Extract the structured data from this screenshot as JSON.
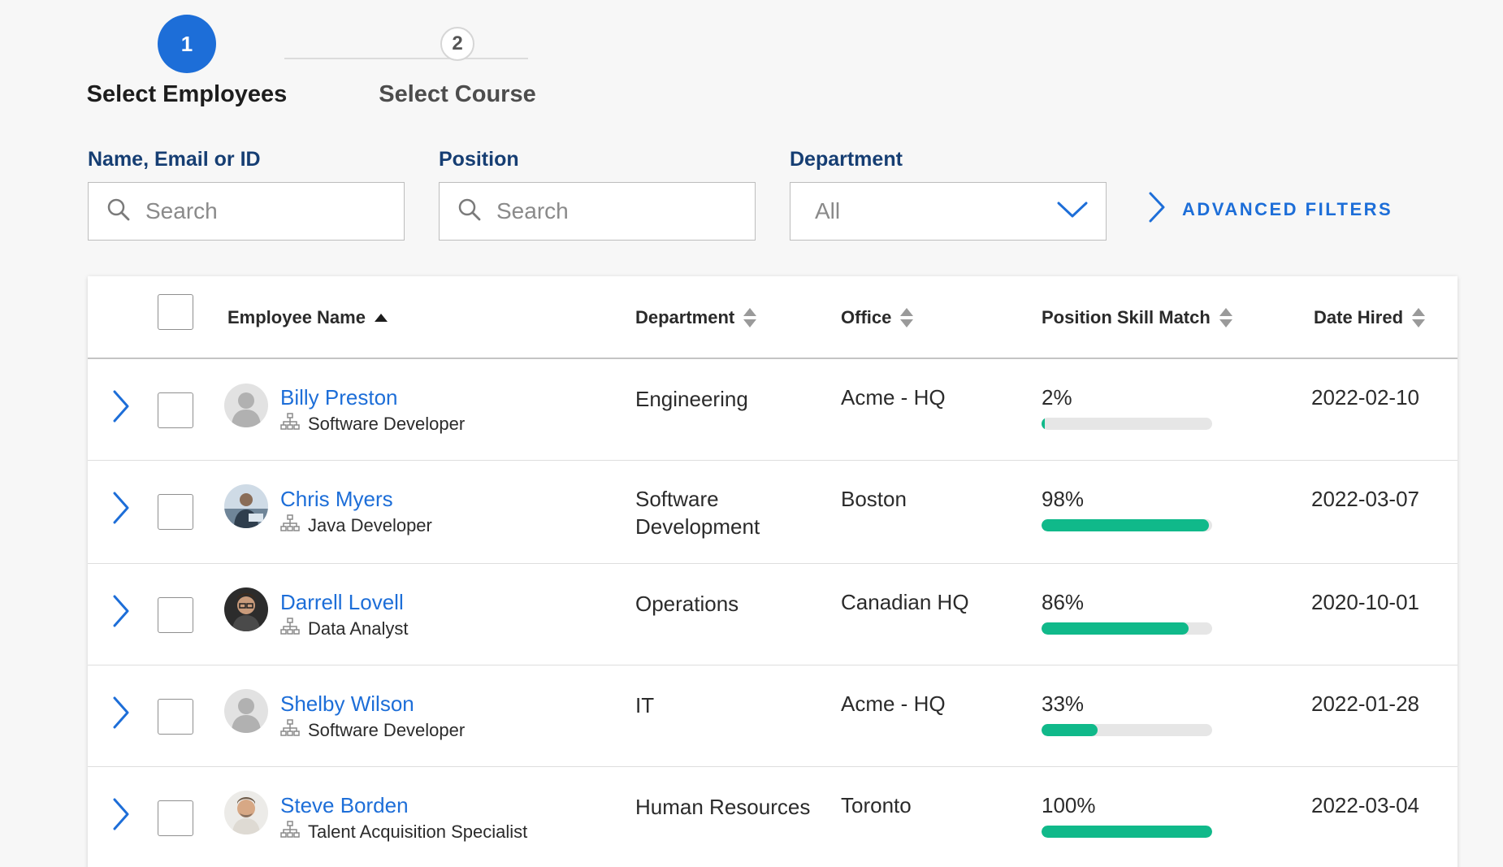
{
  "stepper": {
    "steps": [
      {
        "number": "1",
        "label": "Select Employees",
        "state": "active"
      },
      {
        "number": "2",
        "label": "Select Course",
        "state": "pending"
      }
    ]
  },
  "filters": {
    "name": {
      "label": "Name, Email or ID",
      "placeholder": "Search",
      "value": ""
    },
    "position": {
      "label": "Position",
      "placeholder": "Search",
      "value": ""
    },
    "department": {
      "label": "Department",
      "value": "All"
    },
    "advanced": {
      "label": "ADVANCED FILTERS"
    }
  },
  "table": {
    "columns": {
      "name": "Employee Name",
      "department": "Department",
      "office": "Office",
      "skill": "Position Skill Match",
      "date": "Date Hired"
    },
    "sort": {
      "column": "Employee Name",
      "direction": "ascending"
    },
    "rows": [
      {
        "name": "Billy Preston",
        "position": "Software Developer",
        "department": "Engineering",
        "office": "Acme - HQ",
        "skill_label": "2%",
        "skill": 2,
        "date": "2022-02-10",
        "avatar": "placeholder"
      },
      {
        "name": "Chris Myers",
        "position": "Java Developer",
        "department": "Software Development",
        "office": "Boston",
        "skill_label": "98%",
        "skill": 98,
        "date": "2022-03-07",
        "avatar": "photo"
      },
      {
        "name": "Darrell Lovell",
        "position": "Data Analyst",
        "department": "Operations",
        "office": "Canadian HQ",
        "skill_label": "86%",
        "skill": 86,
        "date": "2020-10-01",
        "avatar": "photo"
      },
      {
        "name": "Shelby Wilson",
        "position": "Software Developer",
        "department": "IT",
        "office": "Acme - HQ",
        "skill_label": "33%",
        "skill": 33,
        "date": "2022-01-28",
        "avatar": "placeholder"
      },
      {
        "name": "Steve Borden",
        "position": "Talent Acquisition Specialist",
        "department": "Human Resources",
        "office": "Toronto",
        "skill_label": "100%",
        "skill": 100,
        "date": "2022-03-04",
        "avatar": "photo"
      }
    ]
  },
  "colors": {
    "accent": "#1d6ed8",
    "label": "#163e73",
    "progress": "#10b98a",
    "progress_track": "#e6e6e6"
  },
  "icons": [
    "search-icon",
    "chevron-down-icon",
    "chevron-right-icon",
    "sort-icon",
    "sort-asc-icon",
    "org-chart-icon"
  ]
}
